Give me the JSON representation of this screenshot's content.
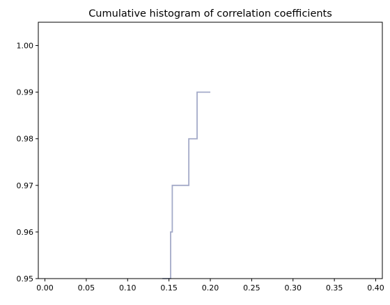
{
  "chart_data": {
    "type": "line",
    "title": "Cumulative histogram of correlation coefficients",
    "xlabel": "",
    "ylabel": "",
    "xlim": [
      -0.008,
      0.408
    ],
    "ylim": [
      0.95,
      1.005
    ],
    "x_ticks": [
      0.0,
      0.05,
      0.1,
      0.15,
      0.2,
      0.25,
      0.3,
      0.35,
      0.4
    ],
    "x_tick_labels": [
      "0.00",
      "0.05",
      "0.10",
      "0.15",
      "0.20",
      "0.25",
      "0.30",
      "0.35",
      "0.40"
    ],
    "y_ticks": [
      0.95,
      0.96,
      0.97,
      0.98,
      0.99,
      1.0
    ],
    "y_tick_labels": [
      "0.95",
      "0.96",
      "0.97",
      "0.98",
      "0.99",
      "1.00"
    ],
    "grid": false,
    "legend": "none",
    "series": [
      {
        "color": "#a3aac8",
        "step": "post",
        "x": [
          0.142,
          0.152,
          0.154,
          0.174,
          0.184,
          0.2
        ],
        "y": [
          0.95,
          0.96,
          0.97,
          0.98,
          0.99,
          0.99
        ]
      }
    ]
  }
}
